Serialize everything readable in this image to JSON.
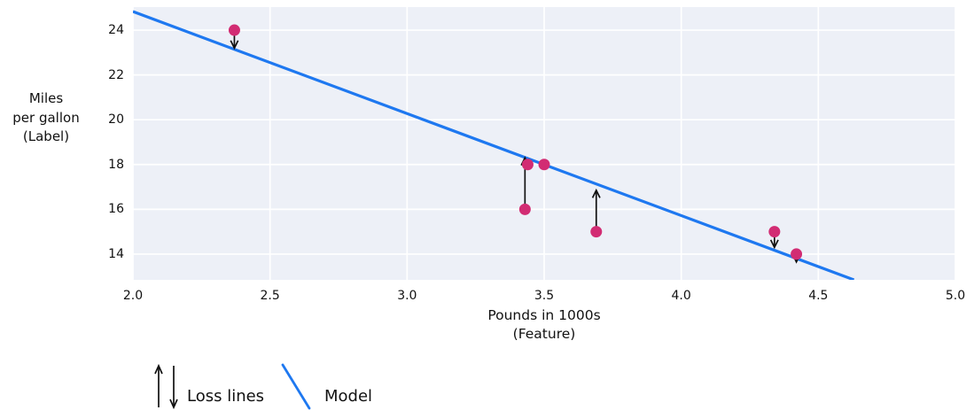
{
  "chart_data": {
    "type": "scatter",
    "title": "",
    "xlabel": "Pounds in 1000s\n(Feature)",
    "ylabel": "Miles\nper gallon\n(Label)",
    "xlim": [
      2.0,
      5.0
    ],
    "ylim": [
      12.85,
      25.03
    ],
    "grid": true,
    "legend_position": "bottom-left",
    "xticks": [
      {
        "v": 2.0,
        "l": "2.0"
      },
      {
        "v": 2.5,
        "l": "2.5"
      },
      {
        "v": 3.0,
        "l": "3.0"
      },
      {
        "v": 3.5,
        "l": "3.5"
      },
      {
        "v": 4.0,
        "l": "4.0"
      },
      {
        "v": 4.5,
        "l": "4.5"
      },
      {
        "v": 5.0,
        "l": "5.0"
      }
    ],
    "yticks": [
      {
        "v": 14,
        "l": "14"
      },
      {
        "v": 16,
        "l": "16"
      },
      {
        "v": 18,
        "l": "18"
      },
      {
        "v": 20,
        "l": "20"
      },
      {
        "v": 22,
        "l": "22"
      },
      {
        "v": 24,
        "l": "24"
      }
    ],
    "points": [
      [
        2.37,
        24
      ],
      [
        3.44,
        18
      ],
      [
        3.5,
        18
      ],
      [
        3.43,
        16
      ],
      [
        3.69,
        15
      ],
      [
        4.34,
        15
      ],
      [
        4.42,
        14
      ]
    ],
    "model_line": {
      "x1": 2.0,
      "y1": 24.83,
      "x2": 4.63,
      "y2": 12.85,
      "slope": -4.56,
      "intercept": 33.95
    },
    "loss_lines": [
      {
        "x": 2.37,
        "y_from": 23.75,
        "y_to": 23.2,
        "direction": "down"
      },
      {
        "x": 3.43,
        "y_from": 16.0,
        "y_to": 18.3,
        "direction": "up"
      },
      {
        "x": 3.69,
        "y_from": 15.0,
        "y_to": 16.85,
        "direction": "up"
      },
      {
        "x": 4.34,
        "y_from": 14.9,
        "y_to": 14.3,
        "direction": "down"
      },
      {
        "x": 4.42,
        "y_from": 14.0,
        "y_to": 13.65,
        "direction": "down"
      }
    ],
    "legend": {
      "loss_label": "Loss lines",
      "model_label": "Model"
    },
    "colors": {
      "points": "#d22c73",
      "model": "#1e78f0",
      "loss": "#111111",
      "grid": "#ffffff",
      "plot_bg": "#edf0f7",
      "text": "#111111"
    }
  }
}
